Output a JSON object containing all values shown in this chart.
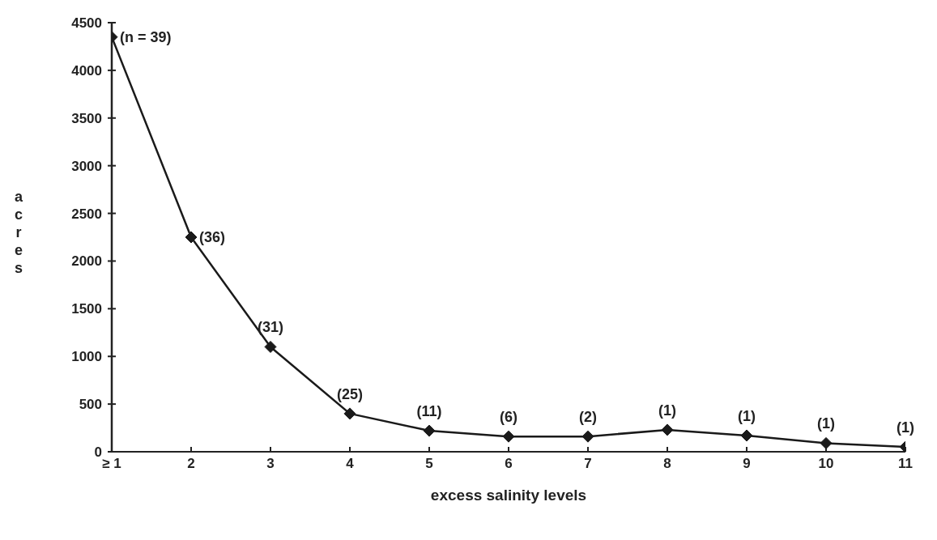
{
  "chart_data": {
    "type": "line",
    "xlabel": "excess salinity levels",
    "ylabel": "acres",
    "categories": [
      "≥ 1",
      "2",
      "3",
      "4",
      "5",
      "6",
      "7",
      "8",
      "9",
      "10",
      "11"
    ],
    "series": [
      {
        "color": "#1a1a1a",
        "values": [
          4350,
          2250,
          1100,
          400,
          220,
          160,
          160,
          230,
          170,
          90,
          50
        ]
      }
    ],
    "ylim": [
      0,
      4500
    ],
    "yticks": [
      0,
      500,
      1000,
      1500,
      2000,
      2500,
      3000,
      3500,
      4000,
      4500
    ],
    "grid": false,
    "legend": false,
    "marker": "diamond",
    "line_style": "solid",
    "annotations": [
      {
        "text": "(n = 39)",
        "x": "≥ 1",
        "y": 4350
      },
      {
        "text": "(36)",
        "x": "2",
        "y": 2250
      },
      {
        "text": "(31)",
        "x": "3",
        "y": 1100
      },
      {
        "text": "(25)",
        "x": "4",
        "y": 400
      },
      {
        "text": "(11)",
        "x": "5",
        "y": 220
      },
      {
        "text": "(6)",
        "x": "6",
        "y": 160
      },
      {
        "text": "(2)",
        "x": "7",
        "y": 160
      },
      {
        "text": "(1)",
        "x": "8",
        "y": 230
      },
      {
        "text": "(1)",
        "x": "9",
        "y": 170
      },
      {
        "text": "(1)",
        "x": "10",
        "y": 90
      },
      {
        "text": "(1)",
        "x": "11",
        "y": 50
      }
    ]
  }
}
